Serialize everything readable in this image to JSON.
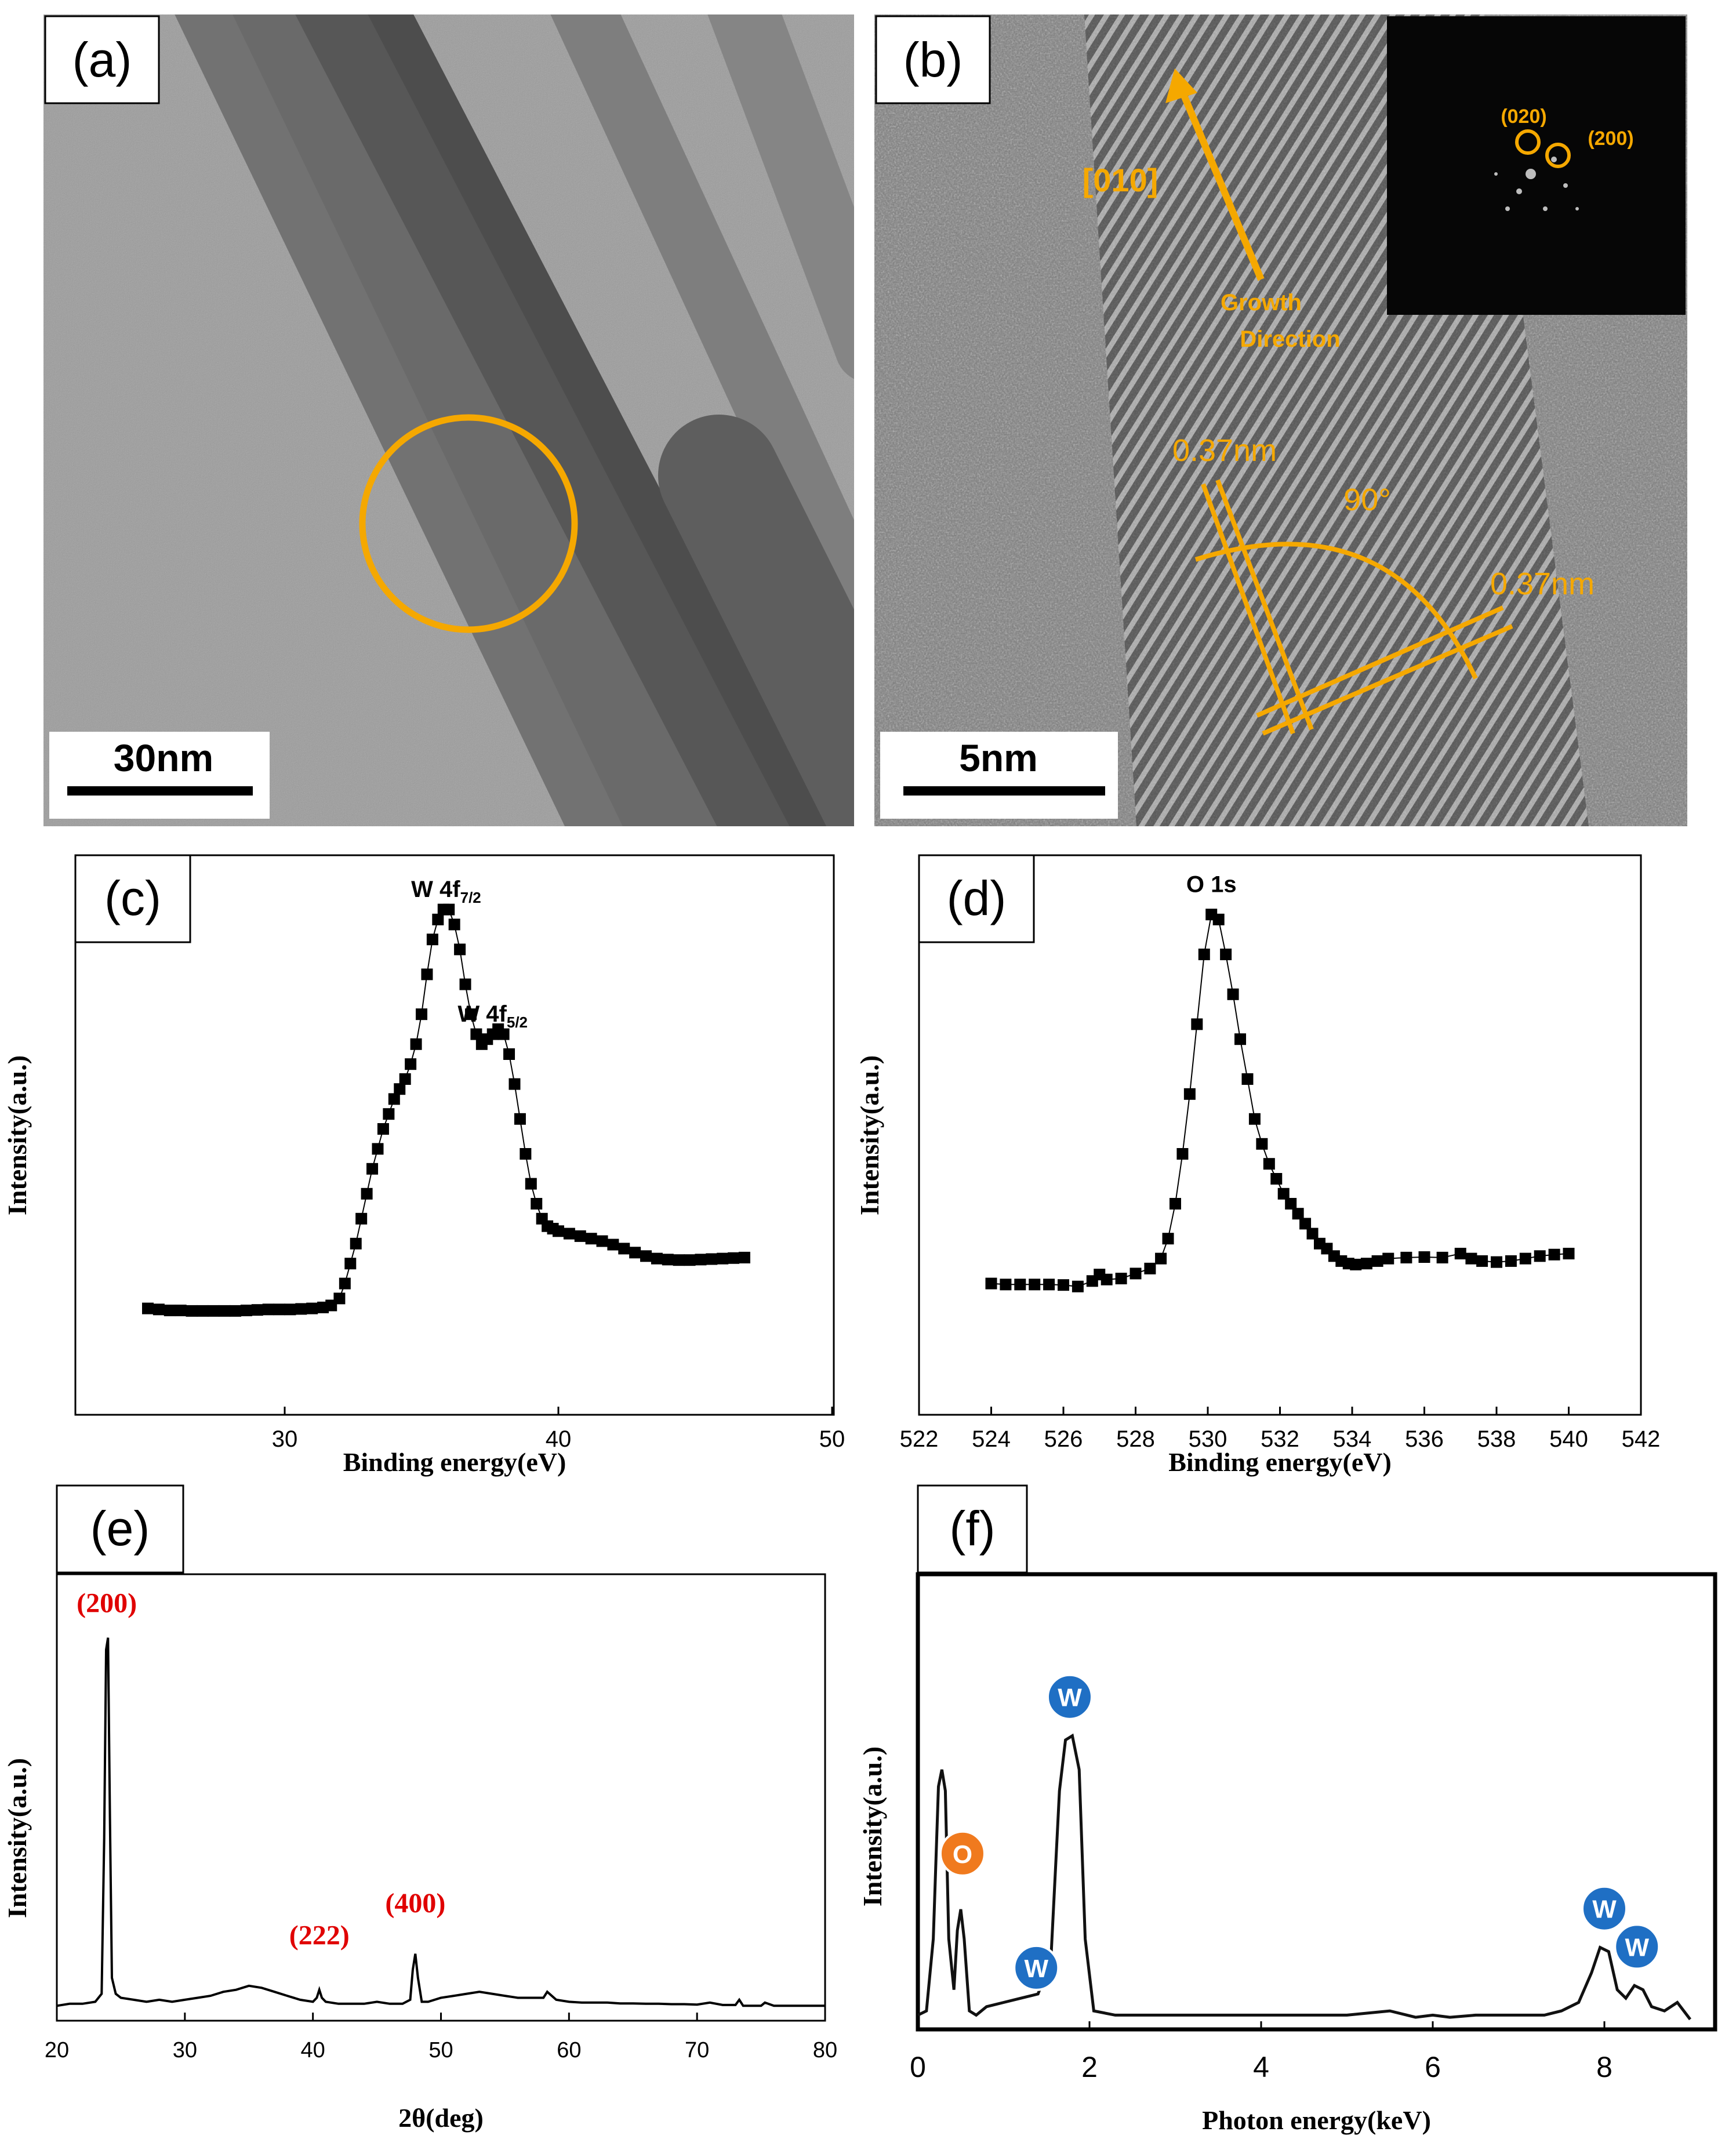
{
  "panels": {
    "a": {
      "label": "(a)",
      "scalebar": "30nm"
    },
    "b": {
      "label": "(b)",
      "scalebar": "5nm",
      "direction": "[010]",
      "growth_line1": "Growth",
      "growth_line2": "Direction",
      "spacing1": "0.37nm",
      "spacing2": "0.37nm",
      "angle": "90°",
      "fft_spot1": "(020)",
      "fft_spot2": "(200)"
    },
    "c": {
      "label": "(c)"
    },
    "d": {
      "label": "(d)"
    },
    "e": {
      "label": "(e)"
    },
    "f": {
      "label": "(f)"
    }
  },
  "colors": {
    "accent": "#f5a800",
    "peak_label": "#e00000",
    "w_marker": "#1f6fc4",
    "o_marker": "#f07a1e"
  },
  "chart_data": [
    {
      "panel": "c",
      "type": "scatter",
      "xlabel": "Binding energy(eV)",
      "ylabel": "Intensity(a.u.)",
      "xlim": [
        20,
        50
      ],
      "xticks": [
        30,
        40,
        50
      ],
      "ylim": [
        0,
        1
      ],
      "annotations": [
        {
          "text": "W 4f",
          "sub": "7/2",
          "x": 35.9,
          "y": 0.98
        },
        {
          "text": "W 4f",
          "sub": "5/2",
          "x": 37.6,
          "y": 0.73
        }
      ],
      "x": [
        25.0,
        25.4,
        25.8,
        26.2,
        26.6,
        27.0,
        27.4,
        27.8,
        28.2,
        28.6,
        29.0,
        29.4,
        29.8,
        30.2,
        30.6,
        31.0,
        31.4,
        31.7,
        32.0,
        32.2,
        32.4,
        32.6,
        32.8,
        33.0,
        33.2,
        33.4,
        33.6,
        33.8,
        34.0,
        34.2,
        34.4,
        34.6,
        34.8,
        35.0,
        35.2,
        35.4,
        35.6,
        35.8,
        36.0,
        36.2,
        36.4,
        36.6,
        36.8,
        37.0,
        37.2,
        37.4,
        37.6,
        37.8,
        38.0,
        38.2,
        38.4,
        38.6,
        38.8,
        39.0,
        39.2,
        39.4,
        39.6,
        39.8,
        40.0,
        40.4,
        40.8,
        41.2,
        41.6,
        42.0,
        42.4,
        42.8,
        43.2,
        43.6,
        44.0,
        44.4,
        44.8,
        45.2,
        45.6,
        46.0,
        46.4,
        46.8
      ],
      "y": [
        0.19,
        0.188,
        0.186,
        0.186,
        0.185,
        0.185,
        0.185,
        0.185,
        0.185,
        0.186,
        0.187,
        0.188,
        0.188,
        0.188,
        0.189,
        0.19,
        0.192,
        0.196,
        0.21,
        0.24,
        0.28,
        0.32,
        0.37,
        0.42,
        0.47,
        0.51,
        0.55,
        0.58,
        0.61,
        0.63,
        0.65,
        0.68,
        0.72,
        0.78,
        0.86,
        0.93,
        0.97,
        0.99,
        0.99,
        0.96,
        0.91,
        0.84,
        0.78,
        0.74,
        0.72,
        0.73,
        0.74,
        0.75,
        0.74,
        0.7,
        0.64,
        0.57,
        0.5,
        0.44,
        0.4,
        0.37,
        0.355,
        0.35,
        0.345,
        0.34,
        0.335,
        0.33,
        0.325,
        0.318,
        0.31,
        0.302,
        0.295,
        0.29,
        0.288,
        0.287,
        0.287,
        0.288,
        0.289,
        0.29,
        0.291,
        0.292
      ]
    },
    {
      "panel": "d",
      "type": "line",
      "xlabel": "Binding energy(eV)",
      "ylabel": "Intensity(a.u.)",
      "xlim": [
        522,
        542
      ],
      "xticks": [
        522,
        524,
        526,
        528,
        530,
        532,
        534,
        536,
        538,
        540,
        542
      ],
      "ylim": [
        0,
        1
      ],
      "annotations": [
        {
          "text": "O 1s",
          "x": 530.1,
          "y": 0.99
        }
      ],
      "x": [
        524.0,
        524.4,
        524.8,
        525.2,
        525.6,
        526.0,
        526.4,
        526.8,
        527.0,
        527.2,
        527.6,
        528.0,
        528.4,
        528.7,
        528.9,
        529.1,
        529.3,
        529.5,
        529.7,
        529.9,
        530.1,
        530.3,
        530.5,
        530.7,
        530.9,
        531.1,
        531.3,
        531.5,
        531.7,
        531.9,
        532.1,
        532.3,
        532.5,
        532.7,
        532.9,
        533.1,
        533.3,
        533.5,
        533.7,
        533.9,
        534.1,
        534.4,
        534.7,
        535.0,
        535.5,
        536.0,
        536.5,
        537.0,
        537.3,
        537.6,
        538.0,
        538.4,
        538.8,
        539.2,
        539.6,
        540.0
      ],
      "y": [
        0.24,
        0.238,
        0.238,
        0.238,
        0.238,
        0.237,
        0.234,
        0.245,
        0.258,
        0.248,
        0.25,
        0.26,
        0.27,
        0.29,
        0.33,
        0.4,
        0.5,
        0.62,
        0.76,
        0.9,
        0.98,
        0.97,
        0.9,
        0.82,
        0.73,
        0.65,
        0.57,
        0.52,
        0.48,
        0.45,
        0.42,
        0.4,
        0.38,
        0.36,
        0.34,
        0.32,
        0.31,
        0.295,
        0.285,
        0.28,
        0.278,
        0.28,
        0.285,
        0.29,
        0.292,
        0.293,
        0.292,
        0.3,
        0.29,
        0.285,
        0.283,
        0.285,
        0.29,
        0.295,
        0.298,
        0.3
      ]
    },
    {
      "panel": "e",
      "type": "line",
      "xlabel": "2θ(deg)",
      "ylabel": "Intensity(a.u.)",
      "xlim": [
        20,
        80
      ],
      "xticks": [
        20,
        30,
        40,
        50,
        60,
        70,
        80
      ],
      "ylim": [
        0,
        1
      ],
      "annotations": [
        {
          "text": "(200)",
          "x": 23.9,
          "y": 0.97
        },
        {
          "text": "(222)",
          "x": 40.5,
          "y": 0.14
        },
        {
          "text": "(400)",
          "x": 48.0,
          "y": 0.22
        }
      ],
      "x": [
        20,
        21,
        22,
        23,
        23.5,
        23.7,
        23.85,
        24.0,
        24.15,
        24.3,
        24.6,
        25,
        26,
        27,
        28,
        29,
        30,
        31,
        32,
        33,
        34,
        35,
        36,
        37,
        38,
        39,
        40,
        40.3,
        40.5,
        40.7,
        41,
        42,
        43,
        44,
        45,
        46,
        47,
        47.6,
        47.8,
        48.0,
        48.2,
        48.5,
        49,
        50,
        51,
        52,
        53,
        54,
        55,
        56,
        57,
        58,
        58.3,
        59,
        60,
        61,
        62,
        63,
        64,
        65,
        66,
        67,
        68,
        69,
        70,
        71,
        72,
        73,
        73.3,
        73.6,
        74,
        75,
        75.3,
        76,
        77,
        78,
        79,
        80
      ],
      "y": [
        0.03,
        0.035,
        0.035,
        0.04,
        0.06,
        0.45,
        0.92,
        0.95,
        0.5,
        0.1,
        0.06,
        0.05,
        0.045,
        0.04,
        0.045,
        0.04,
        0.045,
        0.05,
        0.055,
        0.065,
        0.07,
        0.08,
        0.075,
        0.065,
        0.055,
        0.045,
        0.04,
        0.05,
        0.07,
        0.05,
        0.04,
        0.035,
        0.035,
        0.035,
        0.04,
        0.035,
        0.035,
        0.045,
        0.12,
        0.16,
        0.1,
        0.04,
        0.04,
        0.05,
        0.055,
        0.06,
        0.065,
        0.06,
        0.055,
        0.05,
        0.05,
        0.05,
        0.065,
        0.045,
        0.04,
        0.038,
        0.038,
        0.038,
        0.036,
        0.036,
        0.035,
        0.035,
        0.034,
        0.034,
        0.033,
        0.038,
        0.032,
        0.032,
        0.045,
        0.03,
        0.03,
        0.03,
        0.038,
        0.03,
        0.03,
        0.03,
        0.03,
        0.03
      ]
    },
    {
      "panel": "f",
      "type": "line",
      "xlabel": "Photon energy(keV)",
      "ylabel": "Intensity(a.u.)",
      "xlim": [
        0,
        9
      ],
      "xticks": [
        0,
        2,
        4,
        6,
        8
      ],
      "ylim": [
        0,
        1
      ],
      "markers": [
        {
          "element": "O",
          "kind": "O",
          "x": 0.52,
          "y": 0.34
        },
        {
          "element": "W",
          "kind": "W",
          "x": 1.38,
          "y": 0.07
        },
        {
          "element": "W",
          "kind": "W",
          "x": 1.77,
          "y": 0.71
        },
        {
          "element": "W",
          "kind": "W",
          "x": 8.0,
          "y": 0.21
        },
        {
          "element": "W",
          "kind": "W",
          "x": 8.38,
          "y": 0.12
        }
      ],
      "x": [
        0.0,
        0.1,
        0.18,
        0.24,
        0.28,
        0.32,
        0.36,
        0.42,
        0.46,
        0.5,
        0.54,
        0.6,
        0.68,
        0.8,
        1.0,
        1.2,
        1.4,
        1.55,
        1.65,
        1.72,
        1.8,
        1.88,
        1.95,
        2.05,
        2.3,
        2.6,
        3.0,
        3.5,
        4.0,
        4.5,
        5.0,
        5.5,
        5.8,
        6.0,
        6.2,
        6.5,
        7.0,
        7.3,
        7.5,
        7.7,
        7.85,
        7.95,
        8.05,
        8.15,
        8.25,
        8.35,
        8.45,
        8.55,
        8.7,
        8.85,
        9.0
      ],
      "y": [
        0.02,
        0.03,
        0.2,
        0.56,
        0.6,
        0.55,
        0.2,
        0.08,
        0.22,
        0.27,
        0.2,
        0.03,
        0.02,
        0.04,
        0.05,
        0.06,
        0.07,
        0.15,
        0.55,
        0.67,
        0.68,
        0.6,
        0.2,
        0.03,
        0.02,
        0.02,
        0.02,
        0.02,
        0.02,
        0.02,
        0.02,
        0.03,
        0.015,
        0.02,
        0.015,
        0.02,
        0.02,
        0.02,
        0.03,
        0.05,
        0.12,
        0.18,
        0.17,
        0.08,
        0.06,
        0.09,
        0.08,
        0.04,
        0.03,
        0.05,
        0.01
      ]
    }
  ]
}
